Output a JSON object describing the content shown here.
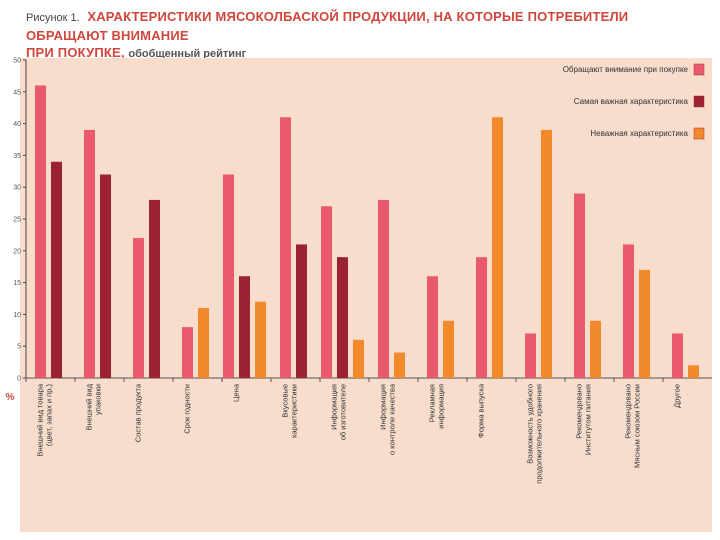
{
  "figure": {
    "label": "Рисунок 1.",
    "title": "ХАРАКТЕРИСТИКИ МЯСОКОЛБАСКОЙ ПРОДУКЦИИ, НА КОТОРЫЕ ПОТРЕБИТЕЛИ ОБРАЩАЮТ ВНИМАНИЕ",
    "title_line2": "ПРИ ПОКУПКЕ,",
    "subtitle": "обобщенный рейтинг"
  },
  "chart_data": {
    "type": "bar",
    "title": "ХАРАКТЕРИСТИКИ МЯСОКОЛБАСКОЙ ПРОДУКЦИИ, НА КОТОРЫЕ ПОТРЕБИТЕЛИ ОБРАЩАЮТ ВНИМАНИЕ ПРИ ПОКУПКЕ, обобщенный рейтинг",
    "ylabel": "%",
    "xlabel": "",
    "ylim": [
      0,
      50
    ],
    "yticks": [
      0,
      5,
      10,
      15,
      20,
      25,
      30,
      35,
      40,
      45,
      50
    ],
    "grid": false,
    "legend_position": "top-right",
    "categories": [
      [
        "Внешний вид товара",
        "(цвет, запах и пр.)"
      ],
      [
        "Внешний вид",
        "упаковки"
      ],
      [
        "Состав продукта"
      ],
      [
        "Срок годности"
      ],
      [
        "Цена"
      ],
      [
        "Вкусовые",
        "характеристики"
      ],
      [
        "Информация",
        "об изготовителе"
      ],
      [
        "Информация",
        "о контроле качества"
      ],
      [
        "Рекламная",
        "информация"
      ],
      [
        "Форма выпуска"
      ],
      [
        "Возможность удобного",
        "продолжительного хранения"
      ],
      [
        "Рекомендовано",
        "Институтом питания"
      ],
      [
        "Рекомендовано",
        "Мясным союзом России"
      ],
      [
        "Другое"
      ]
    ],
    "series": [
      {
        "name": "Обращают внимание при покупке",
        "color": "#ea5a6e",
        "values": [
          46,
          39,
          22,
          8,
          32,
          41,
          27,
          28,
          16,
          19,
          7,
          29,
          21,
          7
        ]
      },
      {
        "name": "Самая важная характеристика",
        "color": "#9b2233",
        "values": [
          34,
          32,
          28,
          null,
          16,
          21,
          19,
          null,
          null,
          null,
          null,
          null,
          null,
          null
        ]
      },
      {
        "name": "Неважная характеристика",
        "color": "#f2892b",
        "values": [
          null,
          null,
          null,
          11,
          12,
          null,
          6,
          4,
          9,
          41,
          39,
          9,
          17,
          2
        ]
      }
    ]
  }
}
